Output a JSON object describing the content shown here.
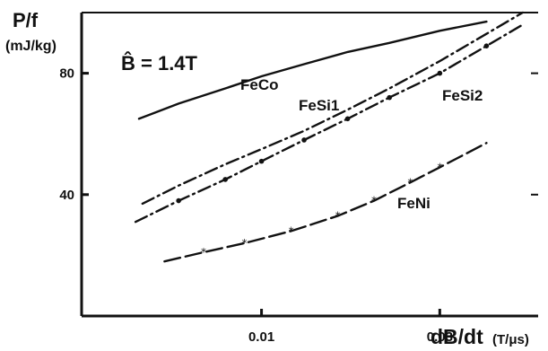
{
  "chart_data": {
    "type": "line",
    "ylabel": "P/f",
    "yunit": "(mJ/kg)",
    "xlabel": "dB/dt",
    "xunit": "(T/μs)",
    "xscale": "log",
    "xlim": [
      0.0033,
      0.055
    ],
    "ylim": [
      0,
      100
    ],
    "yticks": [
      40,
      80
    ],
    "xticks": [
      0.01,
      0.03
    ],
    "ytick_labels": [
      "40",
      "80"
    ],
    "xtick_labels": [
      "0.01",
      "0.03"
    ],
    "annotation": "B̂ = 1.4T",
    "grid": false,
    "series": [
      {
        "name": "FeCo",
        "style": "solid",
        "x": [
          0.0047,
          0.006,
          0.008,
          0.01,
          0.013,
          0.017,
          0.022,
          0.03,
          0.04
        ],
        "y": [
          65,
          70,
          75,
          79,
          83,
          87,
          90,
          94,
          97
        ]
      },
      {
        "name": "FeSi1",
        "style": "dashdot",
        "x": [
          0.0048,
          0.006,
          0.008,
          0.01,
          0.013,
          0.017,
          0.022,
          0.03,
          0.04,
          0.05
        ],
        "y": [
          37,
          43,
          50,
          55,
          61,
          68,
          75,
          84,
          93,
          100
        ]
      },
      {
        "name": "FeSi2",
        "style": "dashdot",
        "x": [
          0.0046,
          0.006,
          0.008,
          0.01,
          0.013,
          0.017,
          0.022,
          0.03,
          0.04,
          0.05
        ],
        "y": [
          31,
          38,
          45,
          51,
          58,
          65,
          72,
          80,
          89,
          96
        ]
      },
      {
        "name": "FeNi",
        "style": "longdash",
        "x": [
          0.0055,
          0.007,
          0.009,
          0.012,
          0.016,
          0.02,
          0.025,
          0.03,
          0.04
        ],
        "y": [
          18,
          21,
          24,
          28,
          33,
          38,
          44,
          49,
          57
        ]
      }
    ],
    "series_labels_position": [
      "upper-center",
      "middle",
      "upper-right",
      "lower-right"
    ]
  }
}
